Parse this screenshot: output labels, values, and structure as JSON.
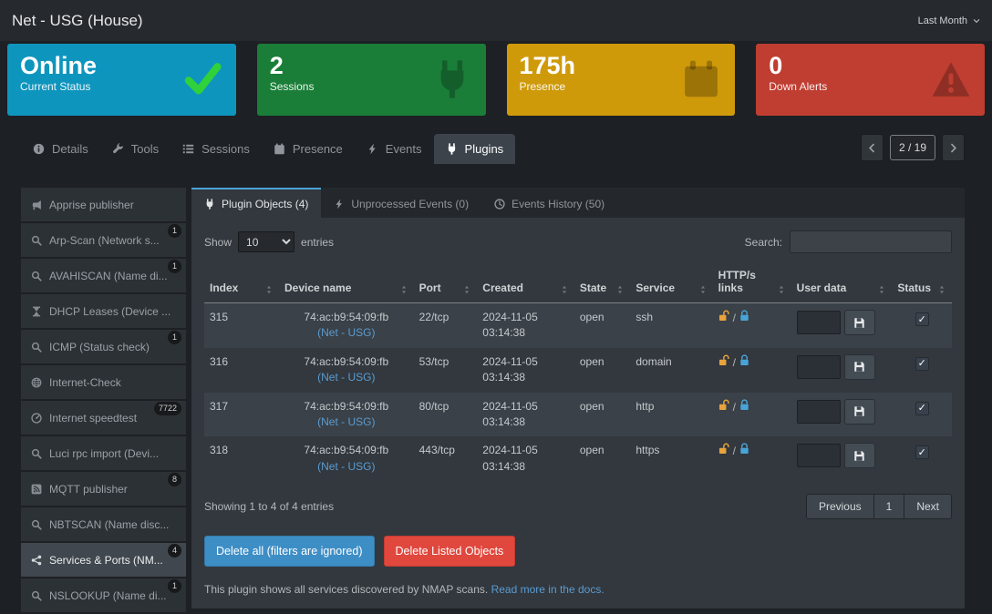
{
  "header": {
    "title": "Net - USG (House)",
    "period_dropdown": "Last Month"
  },
  "status_cards": [
    {
      "value": "Online",
      "label": "Current Status",
      "icon": "check",
      "bg": "#0e95be"
    },
    {
      "value": "2",
      "label": "Sessions",
      "icon": "plug",
      "bg": "#1a7e38"
    },
    {
      "value": "175h",
      "label": "Presence",
      "icon": "calendar",
      "bg": "#cf9a0a"
    },
    {
      "value": "0",
      "label": "Down Alerts",
      "icon": "warning",
      "bg": "#bf3e31"
    }
  ],
  "tabs": {
    "items": [
      {
        "label": "Details",
        "icon": "info",
        "active": false
      },
      {
        "label": "Tools",
        "icon": "wrench",
        "active": false
      },
      {
        "label": "Sessions",
        "icon": "list",
        "active": false
      },
      {
        "label": "Presence",
        "icon": "calendar",
        "active": false
      },
      {
        "label": "Events",
        "icon": "bolt",
        "active": false
      },
      {
        "label": "Plugins",
        "icon": "plug",
        "active": true
      }
    ],
    "pager": {
      "label": "2 / 19"
    }
  },
  "sidebar": {
    "items": [
      {
        "label": "Apprise publisher",
        "icon": "megaphone",
        "badge": "",
        "active": false
      },
      {
        "label": "Arp-Scan (Network s...",
        "icon": "search",
        "badge": "1",
        "active": false
      },
      {
        "label": "AVAHISCAN (Name di...",
        "icon": "search",
        "badge": "1",
        "active": false
      },
      {
        "label": "DHCP Leases (Device ...",
        "icon": "hourglass",
        "badge": "",
        "active": false
      },
      {
        "label": "ICMP (Status check)",
        "icon": "search",
        "badge": "1",
        "active": false
      },
      {
        "label": "Internet-Check",
        "icon": "globe",
        "badge": "",
        "active": false
      },
      {
        "label": "Internet speedtest",
        "icon": "gauge",
        "badge": "7722",
        "active": false
      },
      {
        "label": "Luci rpc import (Devi...",
        "icon": "search",
        "badge": "",
        "active": false
      },
      {
        "label": "MQTT publisher",
        "icon": "broadcast",
        "badge": "8",
        "active": false
      },
      {
        "label": "NBTSCAN (Name disc...",
        "icon": "search",
        "badge": "",
        "active": false
      },
      {
        "label": "Services & Ports (NM...",
        "icon": "network",
        "badge": "4",
        "active": true
      },
      {
        "label": "NSLOOKUP (Name di...",
        "icon": "search",
        "badge": "1",
        "active": false
      }
    ]
  },
  "plugin_panel": {
    "subtabs": [
      {
        "label": "Plugin Objects (4)",
        "icon": "plug",
        "active": true
      },
      {
        "label": "Unprocessed Events (0)",
        "icon": "bolt",
        "active": false
      },
      {
        "label": "Events History (50)",
        "icon": "clock",
        "active": false
      }
    ],
    "show_label": "Show",
    "page_size": "10",
    "entries_label": "entries",
    "search_label": "Search:",
    "table": {
      "headers": [
        "Index",
        "Device name",
        "Port",
        "Created",
        "State",
        "Service",
        "HTTP/s links",
        "User data",
        "Status"
      ],
      "rows": [
        {
          "index": "315",
          "device_mac": "74:ac:b9:54:09:fb",
          "device_link": "(Net - USG)",
          "port": "22/tcp",
          "created_date": "2024-11-05",
          "created_time": "03:14:38",
          "state": "open",
          "service": "ssh",
          "user_data": "",
          "status_checked": true
        },
        {
          "index": "316",
          "device_mac": "74:ac:b9:54:09:fb",
          "device_link": "(Net - USG)",
          "port": "53/tcp",
          "created_date": "2024-11-05",
          "created_time": "03:14:38",
          "state": "open",
          "service": "domain",
          "user_data": "",
          "status_checked": true
        },
        {
          "index": "317",
          "device_mac": "74:ac:b9:54:09:fb",
          "device_link": "(Net - USG)",
          "port": "80/tcp",
          "created_date": "2024-11-05",
          "created_time": "03:14:38",
          "state": "open",
          "service": "http",
          "user_data": "",
          "status_checked": true
        },
        {
          "index": "318",
          "device_mac": "74:ac:b9:54:09:fb",
          "device_link": "(Net - USG)",
          "port": "443/tcp",
          "created_date": "2024-11-05",
          "created_time": "03:14:38",
          "state": "open",
          "service": "https",
          "user_data": "",
          "status_checked": true
        }
      ]
    },
    "showing_text": "Showing 1 to 4 of 4 entries",
    "pagination": {
      "previous": "Previous",
      "page": "1",
      "next": "Next"
    },
    "delete_all_label": "Delete all (filters are ignored)",
    "delete_listed_label": "Delete Listed Objects",
    "footer_text": "This plugin shows all services discovered by NMAP scans.",
    "footer_link": "Read more in the docs."
  },
  "colors": {
    "accent_blue": "#4aa3d6",
    "link_blue": "#5b9bd1",
    "primary_button": "#3e8ec6",
    "danger_button": "#e0473d",
    "lock_open": "#e8a33d",
    "lock_closed": "#4aa3d6"
  }
}
